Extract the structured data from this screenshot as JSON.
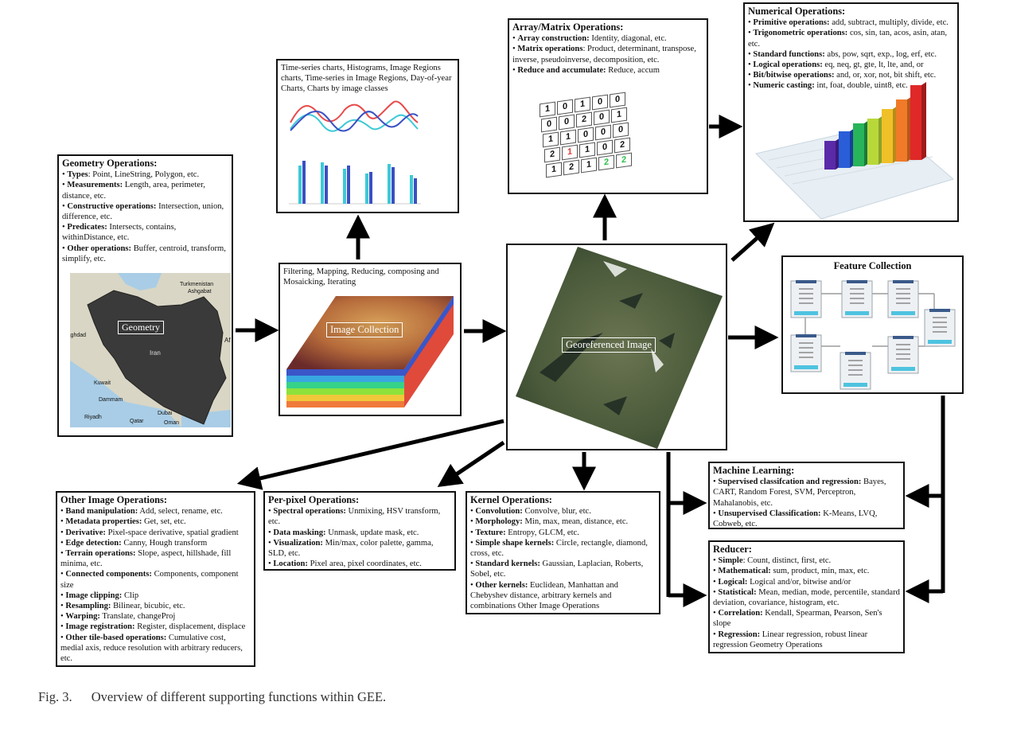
{
  "geometry": {
    "title": "Geometry Operations:",
    "items": [
      {
        "b": "Types",
        "t": ": Point, LineString, Polygon, etc."
      },
      {
        "b": "Measurements:",
        "t": " Length, area, perimeter, distance, etc."
      },
      {
        "b": "Constructive operations:",
        "t": " Intersection, union, difference, etc."
      },
      {
        "b": "Predicates:",
        "t": " Intersects, contains, withinDistance, etc."
      },
      {
        "b": "Other operations:",
        "t": " Buffer, centroid, transform, simplify, etc."
      }
    ],
    "map_label": "Geometry",
    "map_places": [
      "Turkmenistan",
      "Ashgabat",
      "Iran",
      "Baghdad",
      "Kuwait",
      "Dammam",
      "Riyadh",
      "Qatar",
      "Dubai",
      "Oman",
      "Af"
    ]
  },
  "charts": {
    "text": "Time-series charts, Histograms, Image Regions charts, Time-series in Image Regions, Day-of-year Charts, Charts by image classes"
  },
  "image_collection": {
    "text": "Filtering, Mapping, Reducing, composing and Mosaicking, Iterating",
    "label": "Image Collection"
  },
  "georeferenced": {
    "label": "Georeferenced Image"
  },
  "array": {
    "title": "Array/Matrix Operations:",
    "items": [
      {
        "b": "Array construction:",
        "t": " Identity, diagonal, etc."
      },
      {
        "b": "Matrix operations",
        "t": ": Product, determinant, transpose, inverse, pseudoinverse, decomposition, etc."
      },
      {
        "b": "Reduce and accumulate:",
        "t": " Reduce, accum"
      }
    ],
    "matrix_rows": [
      [
        "1",
        "0",
        "1",
        "0",
        "0"
      ],
      [
        "0",
        "0",
        "2",
        "0",
        "1"
      ],
      [
        "1",
        "1",
        "0",
        "0",
        "0"
      ],
      [
        "2",
        "1",
        "1",
        "0",
        "2"
      ],
      [
        "1",
        "2",
        "1",
        "2",
        "2"
      ]
    ]
  },
  "numerical": {
    "title": "Numerical Operations:",
    "items": [
      {
        "b": "Primitive operations:",
        "t": " add, subtract, multiply, divide, etc."
      },
      {
        "b": "Trigonometric operations:",
        "t": " cos, sin, tan, acos, asin, atan, etc."
      },
      {
        "b": "Standard functions:",
        "t": " abs, pow, sqrt, exp., log, erf, etc."
      },
      {
        "b": "Logical operations:",
        "t": " eq, neq, gt, gte, lt, lte, and, or"
      },
      {
        "b": "Bit/bitwise operations:",
        "t": " and, or, xor, not, bit shift, etc."
      },
      {
        "b": "Numeric casting:",
        "t": " int, foat, double, uint8, etc."
      }
    ]
  },
  "feature": {
    "title": "Feature Collection"
  },
  "other_image": {
    "title": "Other Image Operations:",
    "items": [
      {
        "b": "Band manipulation:",
        "t": " Add, select, rename, etc."
      },
      {
        "b": "Metadata properties:",
        "t": " Get, set, etc."
      },
      {
        "b": "Derivative:",
        "t": " Pixel-space derivative, spatial gradient"
      },
      {
        "b": "Edge detection:",
        "t": " Canny, Hough transform"
      },
      {
        "b": "Terrain operations:",
        "t": " Slope, aspect, hillshade, fill minima, etc."
      },
      {
        "b": "Connected components:",
        "t": " Components, component size"
      },
      {
        "b": "Image clipping:",
        "t": " Clip"
      },
      {
        "b": "Resampling:",
        "t": " Bilinear, bicubic, etc."
      },
      {
        "b": "Warping:",
        "t": " Translate, changeProj"
      },
      {
        "b": "Image registration:",
        "t": " Register, displacement, displace"
      },
      {
        "b": "Other tile-based operations:",
        "t": " Cumulative cost, medial axis, reduce resolution with arbitrary reducers, etc."
      }
    ]
  },
  "per_pixel": {
    "title": "Per-pixel Operations:",
    "items": [
      {
        "b": "Spectral operations:",
        "t": " Unmixing, HSV transform, etc."
      },
      {
        "b": "Data masking:",
        "t": " Unmask, update mask, etc."
      },
      {
        "b": "Visualization:",
        "t": " Min/max, color palette, gamma, SLD, etc."
      },
      {
        "b": "Location:",
        "t": " Pixel area, pixel coordinates, etc."
      }
    ]
  },
  "kernel": {
    "title": "Kernel Operations:",
    "items": [
      {
        "b": "Convolution:",
        "t": " Convolve, blur, etc."
      },
      {
        "b": "Morphology:",
        "t": " Min, max, mean, distance, etc."
      },
      {
        "b": "Texture:",
        "t": " Entropy, GLCM, etc."
      },
      {
        "b": "Simple shape kernels:",
        "t": " Circle, rectangle, diamond, cross, etc."
      },
      {
        "b": "Standard kernels:",
        "t": " Gaussian, Laplacian, Roberts, Sobel, etc."
      },
      {
        "b": "Other kernels:",
        "t": " Euclidean, Manhattan and Chebyshev distance, arbitrary kernels and combinations Other Image Operations"
      }
    ]
  },
  "ml": {
    "title": "Machine Learning:",
    "items": [
      {
        "b": "Supervised  classifcation and regression:",
        "t": " Bayes, CART, Random Forest, SVM, Perceptron, Mahalanobis, etc."
      },
      {
        "b": "Unsupervised Classification:",
        "t": " K-Means, LVQ, Cobweb, etc."
      }
    ]
  },
  "reducer": {
    "title": "Reducer:",
    "items": [
      {
        "b": "Simple",
        "t": ": Count, distinct, first, etc."
      },
      {
        "b": "Mathematical:",
        "t": " sum, product, min, max, etc."
      },
      {
        "b": "Logical:",
        "t": " Logical and/or, bitwise and/or"
      },
      {
        "b": "Statistical:",
        "t": " Mean, median, mode, percentile, standard deviation, covariance, histogram, etc."
      },
      {
        "b": "Correlation:",
        "t": " Kendall, Spearman, Pearson, Sen's slope"
      },
      {
        "b": "Regression:",
        "t": " Linear regression, robust linear regression Geometry Operations"
      }
    ]
  },
  "caption": {
    "num": "Fig. 3.",
    "text": "Overview of different supporting functions within GEE."
  },
  "colors": {
    "arrow": "#000000",
    "land": "#3a3a3a",
    "water": "#a9cde6",
    "chart_cyan": "#3ec9d6",
    "chart_blue": "#3a4fc4",
    "chart_red": "#e84a4a"
  }
}
